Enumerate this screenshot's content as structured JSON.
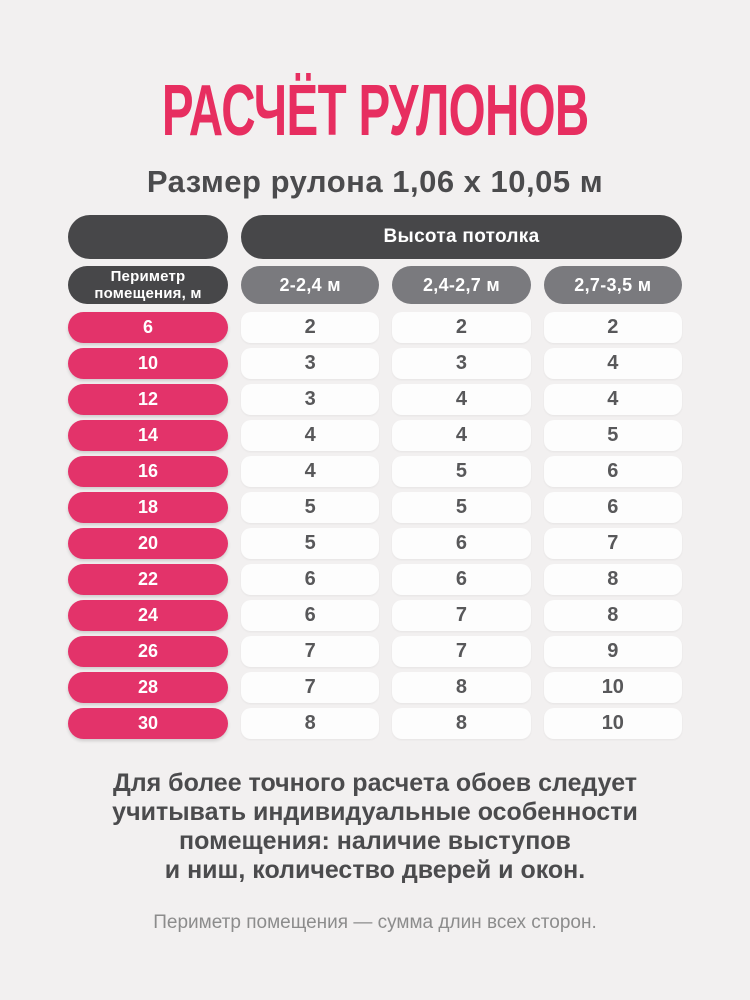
{
  "title": "РАСЧЁТ РУЛОНОВ",
  "subtitle": "Размер рулона 1,06 х 10,05 м",
  "colors": {
    "bg": "#f2f0f0",
    "accent-title": "#e72e60",
    "accent-pill": "#e3336a",
    "dark-pill": "#474749",
    "gray-pill": "#7a7a7e",
    "white-pill": "#fdfdfd",
    "text-dark": "#4b4b4d",
    "text-value": "#58585a",
    "text-hint": "#8c8c8c"
  },
  "table": {
    "group_header": "Высота потолка",
    "row_header_line1": "Периметр",
    "row_header_line2": "помещения, м",
    "columns": [
      "2-2,4 м",
      "2,4-2,7 м",
      "2,7-3,5 м"
    ],
    "rows": [
      {
        "perimeter": "6",
        "values": [
          "2",
          "2",
          "2"
        ]
      },
      {
        "perimeter": "10",
        "values": [
          "3",
          "3",
          "4"
        ]
      },
      {
        "perimeter": "12",
        "values": [
          "3",
          "4",
          "4"
        ]
      },
      {
        "perimeter": "14",
        "values": [
          "4",
          "4",
          "5"
        ]
      },
      {
        "perimeter": "16",
        "values": [
          "4",
          "5",
          "6"
        ]
      },
      {
        "perimeter": "18",
        "values": [
          "5",
          "5",
          "6"
        ]
      },
      {
        "perimeter": "20",
        "values": [
          "5",
          "6",
          "7"
        ]
      },
      {
        "perimeter": "22",
        "values": [
          "6",
          "6",
          "8"
        ]
      },
      {
        "perimeter": "24",
        "values": [
          "6",
          "7",
          "8"
        ]
      },
      {
        "perimeter": "26",
        "values": [
          "7",
          "7",
          "9"
        ]
      },
      {
        "perimeter": "28",
        "values": [
          "7",
          "8",
          "10"
        ]
      },
      {
        "perimeter": "30",
        "values": [
          "8",
          "8",
          "10"
        ]
      }
    ]
  },
  "footer": {
    "note_lines": [
      "Для более точного расчета обоев следует",
      "учитывать индивидуальные особенности",
      "помещения: наличие выступов",
      "и ниш, количество дверей и окон."
    ],
    "hint": "Периметр помещения — сумма длин всех сторон."
  }
}
